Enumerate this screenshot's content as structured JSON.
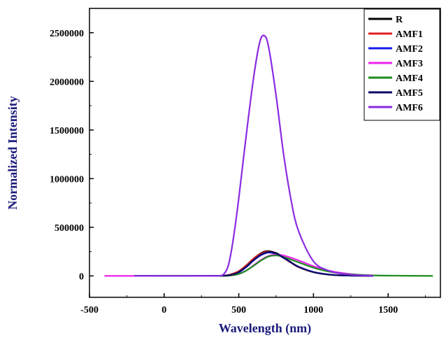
{
  "chart_data": {
    "type": "line",
    "xlabel": "Wavelength (nm)",
    "ylabel": "Normalized Intensity",
    "xlim": [
      -500,
      1850
    ],
    "ylim": [
      -220000,
      2750000
    ],
    "xticks": [
      -500,
      0,
      500,
      1000,
      1500
    ],
    "yticks": [
      0,
      500000,
      1000000,
      1500000,
      2000000,
      2500000
    ],
    "legend_position": "top-right",
    "grid": false,
    "series": [
      {
        "name": "R",
        "color": "#000000",
        "x": [
          -200,
          300,
          400,
          450,
          500,
          550,
          600,
          650,
          690,
          750,
          800,
          850,
          900,
          1000,
          1100,
          1200,
          1400
        ],
        "y": [
          0,
          0,
          3000,
          15000,
          45000,
          105000,
          180000,
          235000,
          255000,
          235000,
          190000,
          140000,
          95000,
          40000,
          15000,
          5000,
          0
        ]
      },
      {
        "name": "AMF1",
        "color": "#e02020",
        "x": [
          -200,
          300,
          400,
          450,
          500,
          550,
          600,
          650,
          690,
          750,
          800,
          850,
          900,
          1000,
          1100,
          1200,
          1400
        ],
        "y": [
          0,
          0,
          4000,
          18000,
          50000,
          110000,
          180000,
          230000,
          250000,
          230000,
          185000,
          135000,
          90000,
          38000,
          14000,
          5000,
          0
        ]
      },
      {
        "name": "AMF2",
        "color": "#1a1aee",
        "x": [
          -200,
          300,
          400,
          450,
          500,
          550,
          600,
          650,
          700,
          750,
          800,
          850,
          900,
          1000,
          1100,
          1200,
          1400
        ],
        "y": [
          0,
          0,
          2000,
          10000,
          35000,
          90000,
          160000,
          215000,
          240000,
          225000,
          185000,
          138000,
          95000,
          40000,
          15000,
          5000,
          0
        ]
      },
      {
        "name": "AMF3",
        "color": "#ee22ee",
        "x": [
          -400,
          300,
          400,
          450,
          500,
          550,
          600,
          650,
          700,
          750,
          800,
          900,
          1000,
          1100,
          1200,
          1300,
          1400
        ],
        "y": [
          0,
          0,
          1000,
          5000,
          20000,
          55000,
          110000,
          165000,
          205000,
          220000,
          210000,
          160000,
          100000,
          55000,
          28000,
          12000,
          5000
        ]
      },
      {
        "name": "AMF4",
        "color": "#1f8a1f",
        "x": [
          -200,
          300,
          400,
          450,
          500,
          550,
          600,
          650,
          700,
          750,
          800,
          900,
          1000,
          1100,
          1200,
          1400,
          1600,
          1800
        ],
        "y": [
          0,
          0,
          1000,
          6000,
          20000,
          55000,
          105000,
          160000,
          200000,
          210000,
          195000,
          140000,
          85000,
          45000,
          22000,
          6000,
          2000,
          0
        ]
      },
      {
        "name": "AMF5",
        "color": "#0b0b66",
        "x": [
          -200,
          300,
          400,
          450,
          500,
          550,
          600,
          650,
          700,
          750,
          800,
          850,
          900,
          1000,
          1100,
          1200,
          1400
        ],
        "y": [
          0,
          0,
          2500,
          12000,
          40000,
          95000,
          165000,
          220000,
          245000,
          230000,
          188000,
          138000,
          93000,
          38000,
          14000,
          5000,
          0
        ]
      },
      {
        "name": "AMF6",
        "color": "#8a2be2",
        "x": [
          -200,
          300,
          370,
          400,
          430,
          460,
          500,
          550,
          600,
          640,
          670,
          700,
          750,
          800,
          850,
          900,
          1000,
          1100,
          1200,
          1300,
          1400
        ],
        "y": [
          0,
          0,
          2000,
          20000,
          110000,
          350000,
          800000,
          1450000,
          2050000,
          2400000,
          2470000,
          2350000,
          1850000,
          1250000,
          780000,
          460000,
          150000,
          55000,
          20000,
          8000,
          3000
        ]
      }
    ]
  }
}
